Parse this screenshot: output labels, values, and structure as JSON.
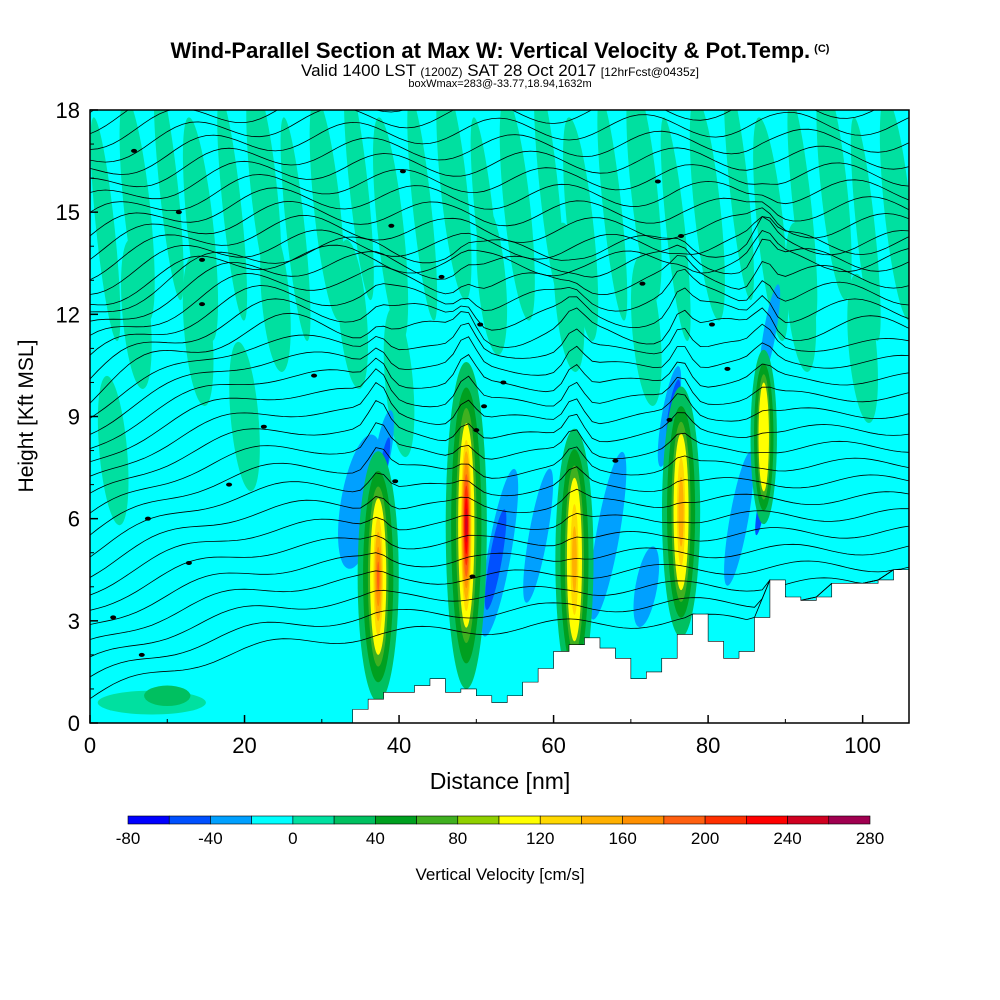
{
  "header": {
    "title": "Wind-Parallel Section at Max W: Vertical Velocity & Pot.Temp.",
    "copyright": "(C)",
    "valid_prefix": "Valid 1400 LST",
    "valid_utc": "(1200Z)",
    "valid_date": "SAT 28 Oct 2017",
    "forecast": "[12hrFcst@0435z]",
    "box_info": "boxWmax=283@-33.77,18.94,1632m"
  },
  "colors": {
    "background_field": "#00ffff",
    "terrain": "#ffffff",
    "contour": "#000000",
    "border": "#000000"
  },
  "chart_data": {
    "type": "heatmap",
    "xlabel": "Distance [nm]",
    "ylabel": "Height [Kft MSL]",
    "xlim": [
      0,
      106
    ],
    "ylim": [
      0,
      18
    ],
    "x_ticks": [
      "0",
      "20",
      "40",
      "60",
      "80",
      "100"
    ],
    "x_tick_values": [
      0,
      20,
      40,
      60,
      80,
      100
    ],
    "y_ticks": [
      "0",
      "3",
      "6",
      "9",
      "12",
      "15",
      "18"
    ],
    "y_tick_values": [
      0,
      3,
      6,
      9,
      12,
      15,
      18
    ],
    "colorbar": {
      "label": "Vertical Velocity [cm/s]",
      "levels": [
        -80,
        -60,
        -40,
        -20,
        0,
        20,
        40,
        60,
        80,
        100,
        120,
        140,
        160,
        180,
        200,
        220,
        240,
        260,
        280
      ],
      "tick_labels": [
        "-80",
        "-40",
        "0",
        "40",
        "80",
        "120",
        "160",
        "200",
        "240",
        "280"
      ],
      "tick_values": [
        -80,
        -40,
        0,
        40,
        80,
        120,
        160,
        200,
        240,
        280
      ],
      "colors": [
        "#0000ff",
        "#0050ff",
        "#00a0ff",
        "#00ffff",
        "#00e0a0",
        "#00c060",
        "#00a020",
        "#40b020",
        "#90d000",
        "#ffff00",
        "#ffd800",
        "#ffb000",
        "#ff9000",
        "#ff6010",
        "#ff3000",
        "#ff0000",
        "#d00020",
        "#a00050"
      ]
    },
    "terrain_profile": {
      "x": [
        0,
        33,
        34,
        36,
        38,
        40,
        42,
        44,
        46,
        48,
        50,
        52,
        54,
        56,
        58,
        60,
        62,
        64,
        66,
        68,
        70,
        72,
        74,
        76,
        78,
        80,
        82,
        84,
        86,
        88,
        90,
        92,
        94,
        96,
        98,
        100,
        102,
        104,
        106
      ],
      "y": [
        0,
        0,
        0.4,
        0.7,
        0.9,
        0.9,
        1.1,
        1.3,
        0.9,
        1.0,
        0.8,
        0.6,
        0.8,
        1.2,
        1.6,
        2.1,
        2.3,
        2.5,
        2.2,
        1.9,
        1.3,
        1.5,
        1.9,
        2.6,
        3.2,
        2.4,
        1.9,
        2.1,
        3.1,
        4.2,
        3.7,
        3.6,
        3.7,
        4.1,
        4.1,
        4.1,
        4.2,
        4.5,
        4.3
      ]
    },
    "contour_labels": [
      {
        "x": 5.7,
        "y": 16.8
      },
      {
        "x": 11.5,
        "y": 15.0
      },
      {
        "x": 14.5,
        "y": 13.6
      },
      {
        "x": 14.5,
        "y": 12.3
      },
      {
        "x": 29,
        "y": 10.2
      },
      {
        "x": 22.5,
        "y": 8.7
      },
      {
        "x": 18,
        "y": 7.0
      },
      {
        "x": 7.5,
        "y": 6.0
      },
      {
        "x": 12.8,
        "y": 4.7
      },
      {
        "x": 3,
        "y": 3.1
      },
      {
        "x": 6.7,
        "y": 2.0
      },
      {
        "x": 40.5,
        "y": 16.2
      },
      {
        "x": 39,
        "y": 14.6
      },
      {
        "x": 45.5,
        "y": 13.1
      },
      {
        "x": 50.5,
        "y": 11.7
      },
      {
        "x": 53.5,
        "y": 10.0
      },
      {
        "x": 51,
        "y": 9.3
      },
      {
        "x": 50,
        "y": 8.6
      },
      {
        "x": 39.5,
        "y": 7.1
      },
      {
        "x": 49.5,
        "y": 4.3
      },
      {
        "x": 73.5,
        "y": 15.9
      },
      {
        "x": 76.5,
        "y": 14.3
      },
      {
        "x": 71.5,
        "y": 12.9
      },
      {
        "x": 80.5,
        "y": 11.7
      },
      {
        "x": 82.5,
        "y": 10.4
      },
      {
        "x": 75,
        "y": 8.9
      },
      {
        "x": 68,
        "y": 7.7
      }
    ]
  }
}
